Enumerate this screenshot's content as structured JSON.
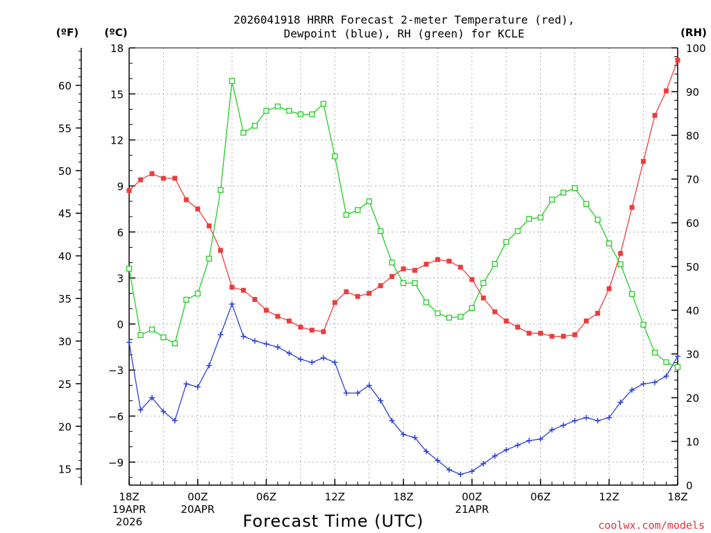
{
  "chart_data": {
    "type": "line",
    "title_line1": "2026041918 HRRR Forecast 2-meter Temperature (red),",
    "title_line2": "Dewpoint (blue), RH (green) for KCLE",
    "xlabel": "Forecast Time (UTC)",
    "credit": "coolwx.com/models",
    "units": {
      "fahrenheit": "(ºF)",
      "celsius": "(ºC)",
      "rh": "(RH)"
    },
    "x_range_hours": [
      0,
      48
    ],
    "y_range_celsius": [
      -10.5,
      18
    ],
    "y_range_rh": [
      0,
      100
    ],
    "grid": true,
    "celsius_ticks": [
      "18",
      "15",
      "12",
      "9",
      "6",
      "3",
      "0",
      "−3",
      "−6",
      "−9"
    ],
    "fahrenheit_ticks": [
      "60",
      "55",
      "50",
      "45",
      "40",
      "35",
      "30",
      "25",
      "20",
      "15"
    ],
    "rh_ticks": [
      "100",
      "90",
      "80",
      "70",
      "60",
      "50",
      "40",
      "30",
      "20",
      "10",
      "0"
    ],
    "x_ticks": [
      {
        "hour": 0,
        "lines": [
          "18Z",
          "19APR",
          "2026"
        ]
      },
      {
        "hour": 6,
        "lines": [
          "00Z",
          "20APR"
        ]
      },
      {
        "hour": 12,
        "lines": [
          "06Z"
        ]
      },
      {
        "hour": 18,
        "lines": [
          "12Z"
        ]
      },
      {
        "hour": 24,
        "lines": [
          "18Z"
        ]
      },
      {
        "hour": 30,
        "lines": [
          "00Z",
          "21APR"
        ]
      },
      {
        "hour": 36,
        "lines": [
          "06Z"
        ]
      },
      {
        "hour": 42,
        "lines": [
          "12Z"
        ]
      },
      {
        "hour": 48,
        "lines": [
          "18Z"
        ]
      }
    ],
    "series": [
      {
        "name": "2-meter Temperature",
        "units": "C",
        "color": "#ee3b3b",
        "marker": "filled-square",
        "values": [
          8.7,
          9.4,
          9.8,
          9.5,
          9.5,
          8.1,
          7.5,
          6.4,
          4.8,
          2.4,
          2.2,
          1.6,
          0.9,
          0.5,
          0.2,
          -0.2,
          -0.4,
          -0.5,
          1.4,
          2.1,
          1.8,
          2.0,
          2.5,
          3.1,
          3.6,
          3.5,
          3.9,
          4.2,
          4.1,
          3.7,
          2.9,
          1.7,
          0.8,
          0.2,
          -0.2,
          -0.6,
          -0.6,
          -0.8,
          -0.8,
          -0.7,
          0.2,
          0.7,
          2.3,
          4.6,
          7.6,
          10.6,
          13.6,
          15.2,
          17.2
        ]
      },
      {
        "name": "Dewpoint",
        "units": "C",
        "color": "#2b3fd8",
        "marker": "plus",
        "values": [
          -1.2,
          -5.6,
          -4.8,
          -5.7,
          -6.3,
          -3.9,
          -4.1,
          -2.7,
          -0.7,
          1.3,
          -0.8,
          -1.1,
          -1.3,
          -1.5,
          -1.9,
          -2.3,
          -2.5,
          -2.2,
          -2.5,
          -4.5,
          -4.5,
          -4.0,
          -5.0,
          -6.3,
          -7.2,
          -7.4,
          -8.3,
          -8.9,
          -9.5,
          -9.8,
          -9.6,
          -9.1,
          -8.6,
          -8.2,
          -7.9,
          -7.6,
          -7.5,
          -6.9,
          -6.6,
          -6.3,
          -6.1,
          -6.3,
          -6.1,
          -5.1,
          -4.3,
          -3.9,
          -3.8,
          -3.4,
          -2.1
        ]
      },
      {
        "name": "Relative Humidity",
        "units": "%",
        "color": "#22cc22",
        "marker": "open-square",
        "values": [
          49.5,
          34.3,
          35.6,
          33.8,
          32.4,
          42.4,
          43.8,
          51.8,
          67.5,
          92.4,
          80.6,
          82.2,
          85.6,
          86.6,
          85.6,
          84.8,
          84.8,
          87.2,
          75.2,
          61.8,
          62.9,
          64.9,
          58.1,
          50.9,
          46.2,
          46.2,
          41.8,
          39.3,
          38.3,
          38.5,
          40.5,
          46.2,
          50.6,
          55.6,
          58.1,
          60.9,
          61.2,
          65.3,
          66.9,
          67.9,
          64.3,
          60.7,
          55.3,
          50.5,
          43.7,
          36.7,
          30.3,
          28.1,
          27.0
        ]
      }
    ]
  }
}
